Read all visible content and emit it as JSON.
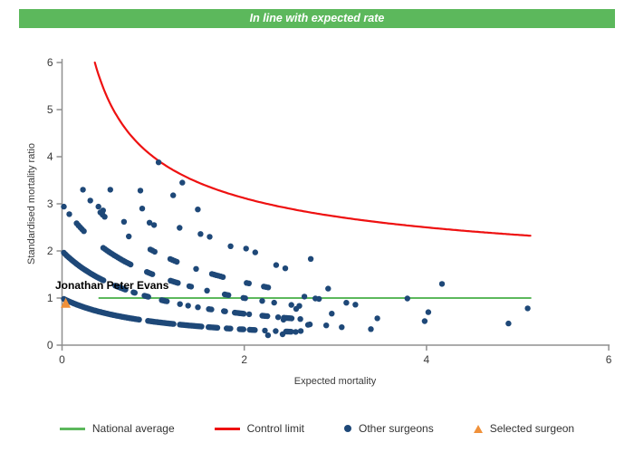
{
  "banner": {
    "title": "In line with expected rate",
    "background_color": "#5cb85c",
    "text_color": "#ffffff"
  },
  "legend": {
    "items": [
      {
        "id": "national-average",
        "label": "National average",
        "swatch": "line",
        "color": "#5cb85c"
      },
      {
        "id": "control-limit",
        "label": "Control limit",
        "swatch": "line",
        "color": "#ee1111"
      },
      {
        "id": "other-surgeons",
        "label": "Other surgeons",
        "swatch": "dot",
        "color": "#1e4878"
      },
      {
        "id": "selected-surgeon",
        "label": "Selected surgeon",
        "swatch": "triangle",
        "color": "#f0913a"
      }
    ]
  },
  "chart_data": {
    "type": "scatter",
    "title": "In line with expected rate",
    "xlabel": "Expected mortality",
    "ylabel": "Standardised mortality ratio",
    "xlim": [
      0,
      6
    ],
    "ylim": [
      0,
      6
    ],
    "x_ticks": [
      0,
      2,
      4,
      6
    ],
    "y_ticks": [
      0,
      1,
      2,
      3,
      4,
      5,
      6
    ],
    "grid": false,
    "legend_position": "bottom",
    "axis_color": "#8f8f8f",
    "tick_text_color": "#3a3a3a",
    "national_average": {
      "label": "National average",
      "value": 1,
      "e_start": 0.4,
      "e_end": 5.15,
      "color": "#5cb85c"
    },
    "control_limit": {
      "label": "Control limit",
      "formula": "SMR = 1 + 3/sqrt(E)",
      "e_start": 0.36,
      "e_end": 5.15,
      "color": "#ee1111"
    },
    "other_surgeons": {
      "label": "Other surgeons",
      "color": "#1e4878",
      "point_radius": 3.2,
      "band_formula": "SMR = (deaths + 1) / (expected + 1)",
      "bands": [
        {
          "deaths": 0,
          "e_start": 0.02,
          "e_end": 2.58,
          "step": 0.014,
          "gap_prob": [
            0.0,
            0.3
          ],
          "gap_len": 0.07
        },
        {
          "deaths": 1,
          "e_start": 0.02,
          "e_end": 2.62,
          "step": 0.014,
          "gap_prob": [
            0.02,
            0.35
          ],
          "gap_len": 0.09
        },
        {
          "deaths": 2,
          "e_start": 0.16,
          "e_end": 2.62,
          "step": 0.02,
          "gap_prob": [
            0.18,
            0.45
          ],
          "gap_len": 0.13
        },
        {
          "deaths": 3,
          "e_start": 0.42,
          "e_end": 2.35,
          "step": 0.024,
          "gap_prob": [
            0.35,
            0.55
          ],
          "gap_len": 0.2
        }
      ],
      "extra_points": [
        [
          0.02,
          2.94
        ],
        [
          0.08,
          2.78
        ],
        [
          0.23,
          3.3
        ],
        [
          0.31,
          3.07
        ],
        [
          0.4,
          2.94
        ],
        [
          0.45,
          2.86
        ],
        [
          0.53,
          3.3
        ],
        [
          0.68,
          2.62
        ],
        [
          0.86,
          3.28
        ],
        [
          0.88,
          2.9
        ],
        [
          0.96,
          2.6
        ],
        [
          1.01,
          2.55
        ],
        [
          1.06,
          3.88
        ],
        [
          1.22,
          3.18
        ],
        [
          1.29,
          2.49
        ],
        [
          1.32,
          3.45
        ],
        [
          1.49,
          2.88
        ],
        [
          1.52,
          2.36
        ],
        [
          1.62,
          2.3
        ],
        [
          1.85,
          2.1
        ],
        [
          2.02,
          2.05
        ],
        [
          2.12,
          1.97
        ],
        [
          2.26,
          0.21
        ],
        [
          2.35,
          1.7
        ],
        [
          2.42,
          0.23
        ],
        [
          2.43,
          0.54
        ],
        [
          2.45,
          1.63
        ],
        [
          2.57,
          0.77
        ],
        [
          2.62,
          0.3
        ],
        [
          2.66,
          1.03
        ],
        [
          2.7,
          0.43
        ],
        [
          2.72,
          0.44
        ],
        [
          2.73,
          1.83
        ],
        [
          2.78,
          0.99
        ],
        [
          2.82,
          0.98
        ],
        [
          2.9,
          0.42
        ],
        [
          2.92,
          1.2
        ],
        [
          2.96,
          0.67
        ],
        [
          3.07,
          0.38
        ],
        [
          3.12,
          0.9
        ],
        [
          3.22,
          0.86
        ],
        [
          3.39,
          0.34
        ],
        [
          3.46,
          0.57
        ],
        [
          3.79,
          0.99
        ],
        [
          3.98,
          0.51
        ],
        [
          4.02,
          0.7
        ],
        [
          4.17,
          1.3
        ],
        [
          4.9,
          0.46
        ],
        [
          5.11,
          0.78
        ]
      ]
    },
    "selected_surgeon": {
      "label": "Selected surgeon",
      "name": "Jonathan Peter Evans",
      "expected": 0.04,
      "ratio": 0.9,
      "color": "#f0913a"
    },
    "seed": 7
  }
}
